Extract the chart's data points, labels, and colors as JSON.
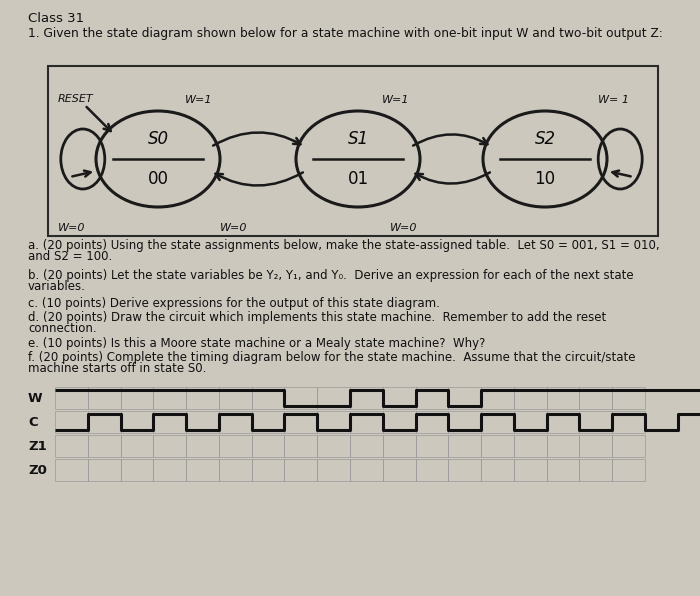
{
  "title": "Class 31",
  "subtitle": "1. Given the state diagram shown below for a state machine with one-bit input W and two-bit output Z:",
  "bg_color": "#cdc8be",
  "states": [
    {
      "name": "S0",
      "output": "00"
    },
    {
      "name": "S1",
      "output": "01"
    },
    {
      "name": "S2",
      "output": "10"
    }
  ],
  "q_lines": [
    "a. (20 points) Using the state assignments below, make the state-assigned table.  Let S0 = 001, S1 = 010,",
    "and S2 = 100.",
    "b. (20 points) Let the state variables be Y₂, Y₁, and Y₀.  Derive an expression for each of the next state",
    "variables.",
    "c. (10 points) Derive expressions for the output of this state diagram.",
    "d. (20 points) Draw the circuit which implements this state machine.  Remember to add the reset",
    "connection.",
    "e. (10 points) Is this a Moore state machine or a Mealy state machine?  Why?",
    "f. (20 points) Complete the timing diagram below for the state machine.  Assume that the circuit/state",
    "machine starts off in state S0."
  ],
  "timing_labels": [
    "W",
    "C",
    "Z1",
    "Z0"
  ],
  "w_pattern": [
    1,
    1,
    1,
    1,
    1,
    1,
    1,
    0,
    0,
    1,
    0,
    1,
    0,
    1,
    1,
    1,
    1,
    1,
    1,
    1
  ],
  "c_pattern": [
    0,
    1,
    0,
    1,
    0,
    1,
    0,
    1,
    0,
    1,
    0,
    1,
    0,
    1,
    0,
    1,
    0,
    1,
    0,
    1
  ]
}
